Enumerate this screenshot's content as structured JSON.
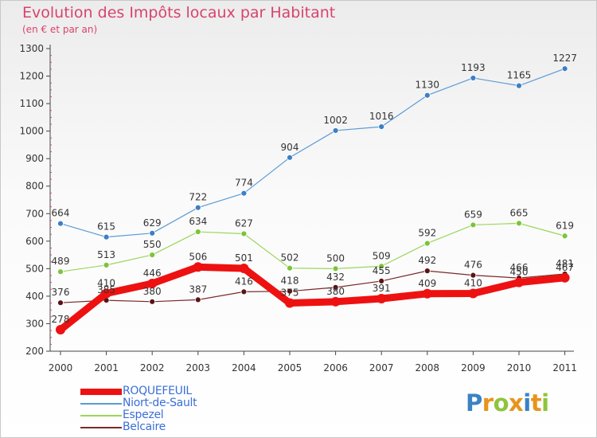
{
  "header": {
    "title": "Evolution des Impôts locaux par Habitant",
    "subtitle": "(en € et par an)"
  },
  "brand": {
    "letters": [
      "P",
      "r",
      "o",
      "x",
      "i",
      "t",
      "i"
    ],
    "colors": [
      "#3b82c4",
      "#e8941a",
      "#8fc43e",
      "#e8941a",
      "#3b82c4",
      "#e8941a",
      "#8fc43e"
    ]
  },
  "chart_data": {
    "type": "line",
    "title": "Evolution des Impôts locaux par Habitant",
    "subtitle": "(en € et par an)",
    "xlabel": "",
    "ylabel": "",
    "categories": [
      "2000",
      "2001",
      "2002",
      "2003",
      "2004",
      "2005",
      "2006",
      "2007",
      "2008",
      "2009",
      "2010",
      "2011"
    ],
    "ylim": [
      200,
      1300
    ],
    "yticks": [
      "200",
      "300",
      "400",
      "500",
      "600",
      "700",
      "800",
      "900",
      "1000",
      "1100",
      "1200",
      "1300"
    ],
    "grid": false,
    "legend_position": "bottom-left",
    "series": [
      {
        "name": "ROQUEFEUIL",
        "color": "#ee1111",
        "values": [
          278,
          410,
          446,
          506,
          501,
          375,
          380,
          391,
          409,
          410,
          450,
          467
        ],
        "labels": [
          "278",
          "410",
          "446",
          "506",
          "501",
          "375",
          "380",
          "391",
          "409",
          "410",
          "450",
          "467"
        ]
      },
      {
        "name": "Niort-de-Sault",
        "color": "#5b9bd5",
        "values": [
          664,
          615,
          629,
          722,
          774,
          904,
          1002,
          1016,
          1130,
          1193,
          1165,
          1227
        ],
        "labels": [
          "664",
          "615",
          "629",
          "722",
          "774",
          "904",
          "1002",
          "1016",
          "1130",
          "1193",
          "1165",
          "1227"
        ]
      },
      {
        "name": "Espezel",
        "color": "#9bd65b",
        "values": [
          489,
          513,
          550,
          634,
          627,
          502,
          500,
          509,
          592,
          659,
          665,
          619
        ],
        "labels": [
          "489",
          "513",
          "550",
          "634",
          "627",
          "502",
          "500",
          "509",
          "592",
          "659",
          "665",
          "619"
        ]
      },
      {
        "name": "Belcaire",
        "color": "#7a2a2a",
        "values": [
          376,
          385,
          380,
          387,
          416,
          418,
          432,
          455,
          492,
          476,
          466,
          481
        ],
        "labels": [
          "376",
          "385",
          "380",
          "387",
          "416",
          "418",
          "432",
          "455",
          "492",
          "476",
          "466",
          "481"
        ]
      }
    ]
  }
}
